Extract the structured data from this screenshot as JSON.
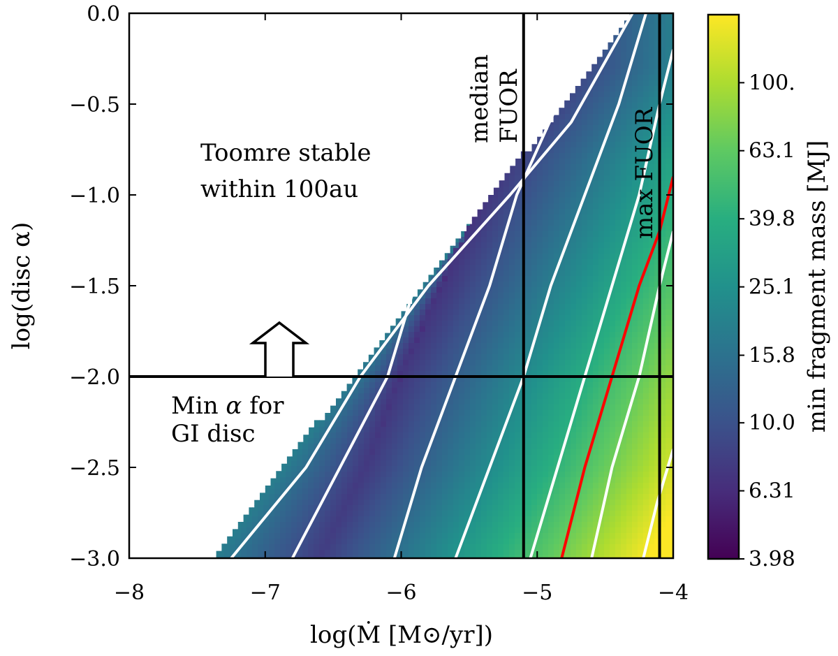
{
  "chart_data": {
    "type": "heatmap",
    "xlabel": "log(Ṁ [M⊙/yr])",
    "ylabel": "log(disc α)",
    "xlim": [
      -8,
      -4
    ],
    "ylim": [
      -3,
      0
    ],
    "xticks": [
      -8,
      -7,
      -6,
      -5,
      -4
    ],
    "xtick_labels": [
      "−8",
      "−7",
      "−6",
      "−5",
      "−4"
    ],
    "yticks": [
      0,
      -0.5,
      -1,
      -1.5,
      -2,
      -2.5,
      -3
    ],
    "ytick_labels": [
      "0.0",
      "−0.5",
      "−1.0",
      "−1.5",
      "−2.0",
      "−2.5",
      "−3.0"
    ],
    "colorbar": {
      "label": "min fragment mass [MJ]",
      "scale": "log",
      "range": [
        3.98,
        158.5
      ],
      "ticks": [
        3.98,
        6.31,
        10.0,
        15.8,
        25.1,
        39.8,
        63.1,
        100.0
      ],
      "tick_labels": [
        "3.98",
        "6.31",
        "10.0",
        "15.8",
        "25.1",
        "39.8",
        "63.1",
        "100."
      ],
      "colormap": "viridis"
    },
    "stability_boundary": {
      "points": [
        [
          -7.38,
          -3.0
        ],
        [
          -4.3,
          0.0
        ]
      ]
    },
    "minimum_valley": {
      "points": [
        [
          -6.6,
          -3.0
        ],
        [
          -6.25,
          -2.5
        ],
        [
          -6.0,
          -2.0
        ],
        [
          -5.7,
          -1.5
        ],
        [
          -5.3,
          -0.8
        ],
        [
          -4.9,
          -0.3
        ]
      ]
    },
    "contours": [
      {
        "color": "white",
        "level_MJ": 10.0,
        "points": [
          [
            -6.8,
            -3.0
          ],
          [
            -6.45,
            -2.5
          ],
          [
            -6.1,
            -2.0
          ],
          [
            -5.9,
            -1.5
          ],
          [
            -5.6,
            -1.0
          ],
          [
            -5.35,
            -0.6
          ],
          [
            -5.25,
            -0.45
          ]
        ]
      },
      {
        "color": "white",
        "level_MJ": 15.8,
        "points": [
          [
            -7.25,
            -3.0
          ],
          [
            -6.7,
            -2.5
          ],
          [
            -6.3,
            -2.0
          ],
          [
            -5.8,
            -1.5
          ],
          [
            -5.2,
            -1.0
          ],
          [
            -4.75,
            -0.6
          ],
          [
            -4.3,
            0.0
          ]
        ]
      },
      {
        "color": "white",
        "level_MJ": 15.8,
        "points": [
          [
            -6.05,
            -3.0
          ],
          [
            -5.85,
            -2.5
          ],
          [
            -5.6,
            -2.0
          ],
          [
            -5.35,
            -1.5
          ],
          [
            -5.15,
            -1.0
          ],
          [
            -4.85,
            -0.5
          ],
          [
            -4.45,
            0.0
          ]
        ]
      },
      {
        "color": "white",
        "level_MJ": 25.1,
        "points": [
          [
            -5.6,
            -3.0
          ],
          [
            -5.35,
            -2.5
          ],
          [
            -5.1,
            -2.0
          ],
          [
            -4.9,
            -1.5
          ],
          [
            -4.65,
            -1.0
          ],
          [
            -4.4,
            -0.5
          ],
          [
            -4.2,
            0.0
          ]
        ]
      },
      {
        "color": "white",
        "level_MJ": 39.8,
        "points": [
          [
            -5.05,
            -3.0
          ],
          [
            -4.85,
            -2.5
          ],
          [
            -4.65,
            -2.0
          ],
          [
            -4.45,
            -1.5
          ],
          [
            -4.25,
            -1.0
          ],
          [
            -4.1,
            -0.5
          ],
          [
            -4.0,
            -0.2
          ]
        ]
      },
      {
        "color": "red",
        "level_MJ": 63.1,
        "points": [
          [
            -4.82,
            -3.0
          ],
          [
            -4.65,
            -2.5
          ],
          [
            -4.45,
            -2.0
          ],
          [
            -4.25,
            -1.5
          ],
          [
            -4.1,
            -1.2
          ],
          [
            -4.0,
            -0.9
          ]
        ]
      },
      {
        "color": "white",
        "level_MJ": 100.0,
        "points": [
          [
            -4.6,
            -3.0
          ],
          [
            -4.45,
            -2.5
          ],
          [
            -4.25,
            -2.0
          ],
          [
            -4.1,
            -1.5
          ],
          [
            -4.0,
            -1.2
          ]
        ]
      },
      {
        "color": "white",
        "level_MJ": 158.5,
        "points": [
          [
            -4.22,
            -3.0
          ],
          [
            -4.12,
            -2.7
          ],
          [
            -4.0,
            -2.4
          ]
        ]
      }
    ],
    "vertical_lines": [
      {
        "x": -5.1,
        "label": "median FUOR",
        "label_lines": [
          "median",
          "FUOR"
        ]
      },
      {
        "x": -4.1,
        "label": "max FUOR",
        "label_lines": [
          "max FUOR"
        ]
      }
    ],
    "horizontal_lines": [
      {
        "y": -2.0,
        "label": "Min α for GI disc"
      }
    ],
    "annotations": {
      "toomre_line1": "Toomre stable",
      "toomre_line2": "within 100au",
      "min_alpha_line1_prefix": "Min",
      "min_alpha_symbol": "α",
      "min_alpha_line1_suffix": "for",
      "min_alpha_line2": "GI disc",
      "median_line1": "median",
      "median_line2": "FUOR",
      "max_label": "max FUOR",
      "arrow": {
        "direction": "up",
        "x": -6.9,
        "y_from": -2.0,
        "y_to": -1.7
      }
    }
  }
}
